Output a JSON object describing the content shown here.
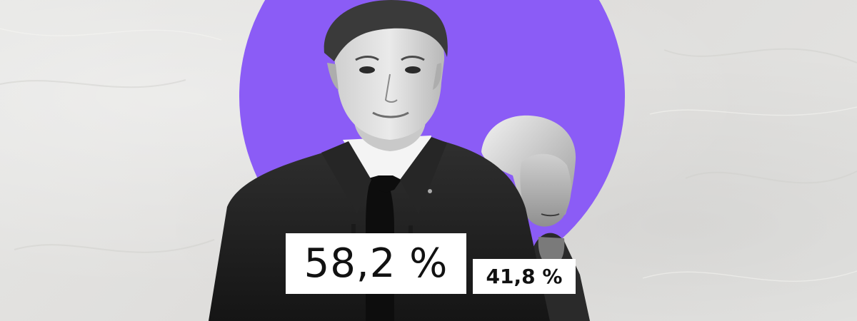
{
  "results": {
    "major_percent": "58,2 %",
    "minor_percent": "41,8 %"
  },
  "colors": {
    "accent_circle": "#8b5cf6",
    "background": "#e3e3e1",
    "label_background": "#ffffff"
  },
  "figures": {
    "left_person": "man-in-suit-photo",
    "right_person": "woman-photo"
  }
}
